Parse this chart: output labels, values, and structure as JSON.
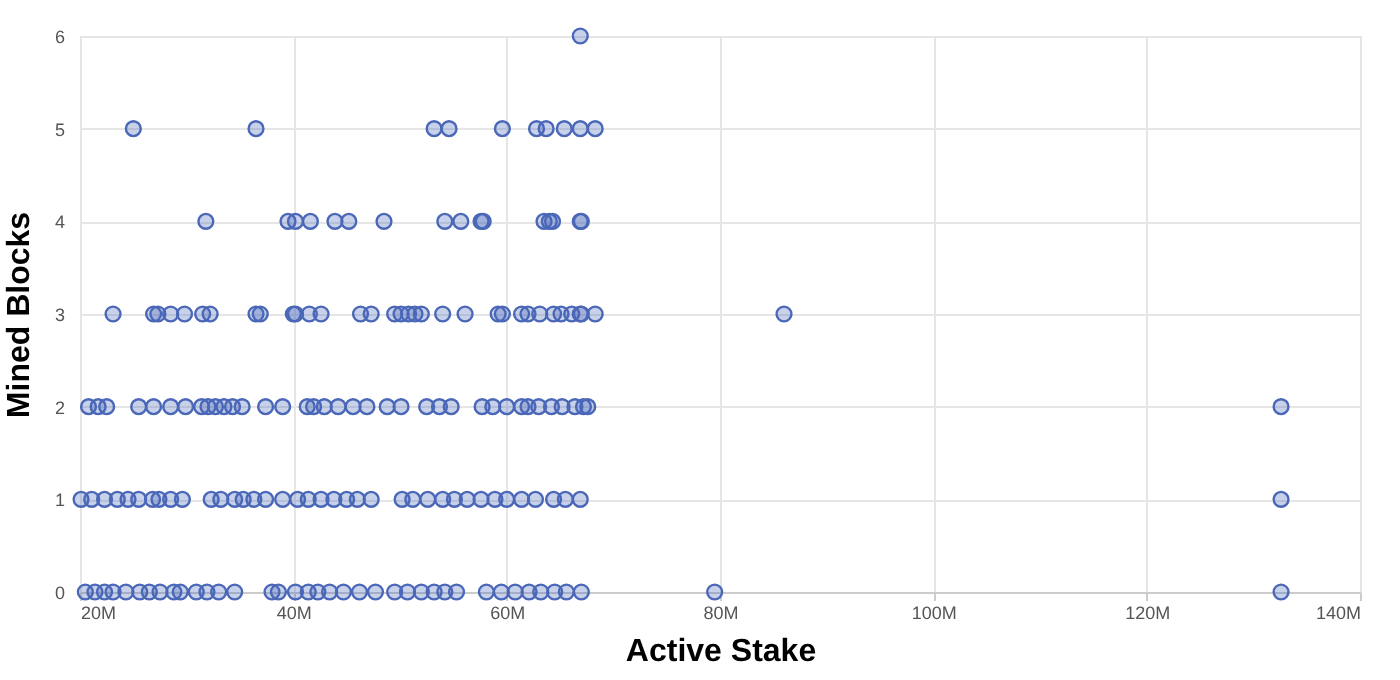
{
  "chart_data": {
    "type": "scatter",
    "xlabel": "Active Stake",
    "ylabel": "Mined Blocks",
    "xlim": [
      20,
      140
    ],
    "xticks": [
      {
        "value": 20,
        "label": "20M"
      },
      {
        "value": 40,
        "label": "40M"
      },
      {
        "value": 60,
        "label": "60M"
      },
      {
        "value": 80,
        "label": "80M"
      },
      {
        "value": 100,
        "label": "100M"
      },
      {
        "value": 120,
        "label": "120M"
      },
      {
        "value": 140,
        "label": "140M"
      }
    ],
    "ylim": [
      0,
      6
    ],
    "yticks": [
      0,
      1,
      2,
      3,
      4,
      5,
      6
    ],
    "grid": true,
    "marker": "circle",
    "series": [
      {
        "color": "#4a67b8",
        "x": [
          66.9,
          25.0,
          36.5,
          53.2,
          54.6,
          59.6,
          62.8,
          63.7,
          65.4,
          66.9,
          68.3,
          31.8,
          39.5,
          40.2,
          41.6,
          43.9,
          45.2,
          48.5,
          54.2,
          55.7,
          57.6,
          57.8,
          63.5,
          64.0,
          64.3,
          66.9,
          67.0,
          23.1,
          26.9,
          27.3,
          28.5,
          29.8,
          31.5,
          32.2,
          36.5,
          36.9,
          40.0,
          40.2,
          41.5,
          42.6,
          46.3,
          47.3,
          49.5,
          50.1,
          50.8,
          51.4,
          52.0,
          54.0,
          56.1,
          59.2,
          59.6,
          61.4,
          62.0,
          63.1,
          64.4,
          65.1,
          66.1,
          66.9,
          67.0,
          68.3,
          86.0,
          20.8,
          21.7,
          22.5,
          25.5,
          26.9,
          28.5,
          29.9,
          31.4,
          32.0,
          32.7,
          33.5,
          34.3,
          35.2,
          37.4,
          39.0,
          41.3,
          41.9,
          42.9,
          44.2,
          45.6,
          46.9,
          48.8,
          50.1,
          52.5,
          53.7,
          54.8,
          57.7,
          58.7,
          60.0,
          61.4,
          62.0,
          63.0,
          64.2,
          65.2,
          66.4,
          67.2,
          67.6,
          132.6,
          20.1,
          21.1,
          22.3,
          23.5,
          24.5,
          25.5,
          26.8,
          27.4,
          28.5,
          29.6,
          32.3,
          33.2,
          34.5,
          35.3,
          36.3,
          37.4,
          39.0,
          40.4,
          41.4,
          42.6,
          43.8,
          45.0,
          46.0,
          47.3,
          50.2,
          51.2,
          52.6,
          54.0,
          55.1,
          56.3,
          57.6,
          58.9,
          60.0,
          61.4,
          62.7,
          64.4,
          65.5,
          66.9,
          132.6,
          20.5,
          21.4,
          22.3,
          23.1,
          24.3,
          25.6,
          26.5,
          27.5,
          28.8,
          29.4,
          30.9,
          31.9,
          33.0,
          34.5,
          38.0,
          38.6,
          40.2,
          41.4,
          42.3,
          43.4,
          44.7,
          46.2,
          47.7,
          49.5,
          50.7,
          52.0,
          53.2,
          54.2,
          55.3,
          58.1,
          59.5,
          60.8,
          62.1,
          63.2,
          64.5,
          65.6,
          67.0,
          79.5,
          132.6
        ],
        "values": [
          6,
          5,
          5,
          5,
          5,
          5,
          5,
          5,
          5,
          5,
          5,
          4,
          4,
          4,
          4,
          4,
          4,
          4,
          4,
          4,
          4,
          4,
          4,
          4,
          4,
          4,
          4,
          3,
          3,
          3,
          3,
          3,
          3,
          3,
          3,
          3,
          3,
          3,
          3,
          3,
          3,
          3,
          3,
          3,
          3,
          3,
          3,
          3,
          3,
          3,
          3,
          3,
          3,
          3,
          3,
          3,
          3,
          3,
          3,
          3,
          3,
          2,
          2,
          2,
          2,
          2,
          2,
          2,
          2,
          2,
          2,
          2,
          2,
          2,
          2,
          2,
          2,
          2,
          2,
          2,
          2,
          2,
          2,
          2,
          2,
          2,
          2,
          2,
          2,
          2,
          2,
          2,
          2,
          2,
          2,
          2,
          2,
          2,
          2,
          1,
          1,
          1,
          1,
          1,
          1,
          1,
          1,
          1,
          1,
          1,
          1,
          1,
          1,
          1,
          1,
          1,
          1,
          1,
          1,
          1,
          1,
          1,
          1,
          1,
          1,
          1,
          1,
          1,
          1,
          1,
          1,
          1,
          1,
          1,
          1,
          1,
          1,
          1,
          0,
          0,
          0,
          0,
          0,
          0,
          0,
          0,
          0,
          0,
          0,
          0,
          0,
          0,
          0,
          0,
          0,
          0,
          0,
          0,
          0,
          0,
          0,
          0,
          0,
          0,
          0,
          0,
          0,
          0,
          0,
          0,
          0,
          0,
          0,
          0,
          0,
          0,
          0
        ]
      }
    ]
  }
}
